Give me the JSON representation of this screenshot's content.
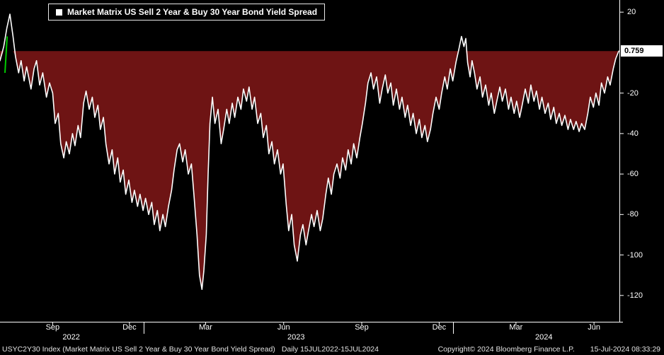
{
  "footer": {
    "instrument": "USYC2Y30 Index (Market Matrix US Sell 2 Year & Buy 30 Year Bond Yield Spread)",
    "range": "Daily 15JUL2022-15JUL2024",
    "copyright": "Copyright© 2024 Bloomberg Finance L.P.",
    "timestamp": "15-Jul-2024 08:33:29"
  },
  "chart_data": {
    "type": "area",
    "title": "Market Matrix US Sell 2 Year & Buy 30 Year Bond Yield Spread",
    "ylabel": "",
    "xlabel": "",
    "ylim": [
      -133,
      26
    ],
    "fill_level": 0.759,
    "current_value": 0.759,
    "current_label": "0.759",
    "y_ticks": [
      20,
      -20,
      -40,
      -60,
      -80,
      -100,
      -120
    ],
    "x_ticks": [
      {
        "label": "Sep",
        "f": 0.085
      },
      {
        "label": "Dec",
        "f": 0.209
      },
      {
        "label": "Mar",
        "f": 0.332
      },
      {
        "label": "Jun",
        "f": 0.458
      },
      {
        "label": "Sep",
        "f": 0.584
      },
      {
        "label": "Dec",
        "f": 0.709
      },
      {
        "label": "Mar",
        "f": 0.833
      },
      {
        "label": "Jun",
        "f": 0.959
      }
    ],
    "year_labels": [
      {
        "label": "2022",
        "f": 0.115
      },
      {
        "label": "2023",
        "f": 0.478
      },
      {
        "label": "2024",
        "f": 0.878
      }
    ],
    "year_separators": [
      0.2325,
      0.732
    ],
    "colors": {
      "line": "#ffffff",
      "fill": "#6e1414",
      "accent_green": "#00cc00",
      "axis": "#ffffff",
      "value_box_bg": "#ffffff",
      "value_box_text": "#000000",
      "background": "#000000"
    },
    "green_segment": [
      [
        0.008,
        -10
      ],
      [
        0.0115,
        8
      ]
    ],
    "points": [
      [
        0.0,
        -4
      ],
      [
        0.006,
        3
      ],
      [
        0.011,
        12
      ],
      [
        0.016,
        19
      ],
      [
        0.021,
        8
      ],
      [
        0.025,
        -2
      ],
      [
        0.03,
        -10
      ],
      [
        0.034,
        -4
      ],
      [
        0.039,
        -14
      ],
      [
        0.043,
        -7
      ],
      [
        0.05,
        -18
      ],
      [
        0.055,
        -8
      ],
      [
        0.059,
        -4
      ],
      [
        0.064,
        -16
      ],
      [
        0.069,
        -10
      ],
      [
        0.075,
        -22
      ],
      [
        0.08,
        -15
      ],
      [
        0.085,
        -20
      ],
      [
        0.089,
        -35
      ],
      [
        0.094,
        -30
      ],
      [
        0.098,
        -45
      ],
      [
        0.103,
        -52
      ],
      [
        0.107,
        -44
      ],
      [
        0.112,
        -50
      ],
      [
        0.117,
        -40
      ],
      [
        0.121,
        -46
      ],
      [
        0.126,
        -36
      ],
      [
        0.13,
        -42
      ],
      [
        0.135,
        -25
      ],
      [
        0.139,
        -19
      ],
      [
        0.144,
        -28
      ],
      [
        0.149,
        -22
      ],
      [
        0.153,
        -32
      ],
      [
        0.158,
        -26
      ],
      [
        0.162,
        -38
      ],
      [
        0.167,
        -32
      ],
      [
        0.171,
        -45
      ],
      [
        0.176,
        -55
      ],
      [
        0.181,
        -48
      ],
      [
        0.185,
        -60
      ],
      [
        0.19,
        -52
      ],
      [
        0.194,
        -64
      ],
      [
        0.199,
        -58
      ],
      [
        0.203,
        -70
      ],
      [
        0.208,
        -63
      ],
      [
        0.213,
        -74
      ],
      [
        0.217,
        -68
      ],
      [
        0.222,
        -76
      ],
      [
        0.226,
        -70
      ],
      [
        0.231,
        -78
      ],
      [
        0.235,
        -72
      ],
      [
        0.24,
        -80
      ],
      [
        0.245,
        -74
      ],
      [
        0.249,
        -85
      ],
      [
        0.254,
        -78
      ],
      [
        0.258,
        -88
      ],
      [
        0.263,
        -80
      ],
      [
        0.267,
        -86
      ],
      [
        0.272,
        -76
      ],
      [
        0.277,
        -68
      ],
      [
        0.281,
        -58
      ],
      [
        0.286,
        -48
      ],
      [
        0.29,
        -45
      ],
      [
        0.295,
        -54
      ],
      [
        0.299,
        -48
      ],
      [
        0.304,
        -60
      ],
      [
        0.309,
        -55
      ],
      [
        0.313,
        -70
      ],
      [
        0.318,
        -90
      ],
      [
        0.322,
        -110
      ],
      [
        0.326,
        -117
      ],
      [
        0.329,
        -108
      ],
      [
        0.333,
        -90
      ],
      [
        0.336,
        -60
      ],
      [
        0.339,
        -35
      ],
      [
        0.343,
        -22
      ],
      [
        0.347,
        -35
      ],
      [
        0.352,
        -28
      ],
      [
        0.357,
        -45
      ],
      [
        0.361,
        -38
      ],
      [
        0.366,
        -28
      ],
      [
        0.37,
        -35
      ],
      [
        0.375,
        -25
      ],
      [
        0.379,
        -32
      ],
      [
        0.384,
        -22
      ],
      [
        0.389,
        -28
      ],
      [
        0.393,
        -18
      ],
      [
        0.398,
        -24
      ],
      [
        0.402,
        -17
      ],
      [
        0.407,
        -28
      ],
      [
        0.411,
        -22
      ],
      [
        0.416,
        -35
      ],
      [
        0.421,
        -30
      ],
      [
        0.425,
        -42
      ],
      [
        0.43,
        -36
      ],
      [
        0.434,
        -50
      ],
      [
        0.439,
        -44
      ],
      [
        0.443,
        -55
      ],
      [
        0.448,
        -48
      ],
      [
        0.453,
        -60
      ],
      [
        0.457,
        -55
      ],
      [
        0.462,
        -75
      ],
      [
        0.466,
        -88
      ],
      [
        0.471,
        -80
      ],
      [
        0.475,
        -95
      ],
      [
        0.48,
        -103
      ],
      [
        0.485,
        -90
      ],
      [
        0.489,
        -85
      ],
      [
        0.494,
        -95
      ],
      [
        0.498,
        -88
      ],
      [
        0.503,
        -80
      ],
      [
        0.507,
        -86
      ],
      [
        0.512,
        -78
      ],
      [
        0.517,
        -88
      ],
      [
        0.521,
        -82
      ],
      [
        0.526,
        -70
      ],
      [
        0.53,
        -62
      ],
      [
        0.535,
        -70
      ],
      [
        0.539,
        -60
      ],
      [
        0.544,
        -55
      ],
      [
        0.549,
        -62
      ],
      [
        0.553,
        -52
      ],
      [
        0.558,
        -58
      ],
      [
        0.562,
        -48
      ],
      [
        0.567,
        -55
      ],
      [
        0.571,
        -45
      ],
      [
        0.576,
        -52
      ],
      [
        0.581,
        -42
      ],
      [
        0.585,
        -35
      ],
      [
        0.59,
        -25
      ],
      [
        0.594,
        -15
      ],
      [
        0.599,
        -10
      ],
      [
        0.603,
        -18
      ],
      [
        0.608,
        -12
      ],
      [
        0.613,
        -25
      ],
      [
        0.617,
        -18
      ],
      [
        0.622,
        -11
      ],
      [
        0.626,
        -20
      ],
      [
        0.631,
        -15
      ],
      [
        0.635,
        -26
      ],
      [
        0.64,
        -18
      ],
      [
        0.645,
        -28
      ],
      [
        0.649,
        -22
      ],
      [
        0.654,
        -32
      ],
      [
        0.658,
        -26
      ],
      [
        0.663,
        -36
      ],
      [
        0.667,
        -30
      ],
      [
        0.672,
        -40
      ],
      [
        0.677,
        -33
      ],
      [
        0.681,
        -42
      ],
      [
        0.686,
        -36
      ],
      [
        0.69,
        -44
      ],
      [
        0.695,
        -38
      ],
      [
        0.699,
        -30
      ],
      [
        0.704,
        -22
      ],
      [
        0.709,
        -28
      ],
      [
        0.713,
        -20
      ],
      [
        0.718,
        -12
      ],
      [
        0.722,
        -18
      ],
      [
        0.727,
        -8
      ],
      [
        0.731,
        -14
      ],
      [
        0.736,
        -5
      ],
      [
        0.741,
        2
      ],
      [
        0.745,
        8
      ],
      [
        0.749,
        3
      ],
      [
        0.752,
        7
      ],
      [
        0.755,
        -5
      ],
      [
        0.759,
        -12
      ],
      [
        0.762,
        -4
      ],
      [
        0.766,
        -10
      ],
      [
        0.77,
        -18
      ],
      [
        0.775,
        -12
      ],
      [
        0.779,
        -22
      ],
      [
        0.784,
        -16
      ],
      [
        0.789,
        -26
      ],
      [
        0.793,
        -20
      ],
      [
        0.798,
        -30
      ],
      [
        0.802,
        -24
      ],
      [
        0.807,
        -17
      ],
      [
        0.811,
        -24
      ],
      [
        0.816,
        -18
      ],
      [
        0.821,
        -28
      ],
      [
        0.825,
        -22
      ],
      [
        0.83,
        -30
      ],
      [
        0.834,
        -24
      ],
      [
        0.839,
        -32
      ],
      [
        0.843,
        -26
      ],
      [
        0.848,
        -18
      ],
      [
        0.853,
        -25
      ],
      [
        0.857,
        -16
      ],
      [
        0.862,
        -24
      ],
      [
        0.866,
        -19
      ],
      [
        0.871,
        -28
      ],
      [
        0.875,
        -22
      ],
      [
        0.88,
        -30
      ],
      [
        0.885,
        -25
      ],
      [
        0.889,
        -33
      ],
      [
        0.894,
        -27
      ],
      [
        0.898,
        -35
      ],
      [
        0.903,
        -30
      ],
      [
        0.907,
        -36
      ],
      [
        0.912,
        -31
      ],
      [
        0.917,
        -38
      ],
      [
        0.921,
        -33
      ],
      [
        0.926,
        -38
      ],
      [
        0.93,
        -34
      ],
      [
        0.935,
        -39
      ],
      [
        0.939,
        -35
      ],
      [
        0.944,
        -38
      ],
      [
        0.949,
        -30
      ],
      [
        0.953,
        -22
      ],
      [
        0.958,
        -27
      ],
      [
        0.962,
        -20
      ],
      [
        0.967,
        -26
      ],
      [
        0.971,
        -15
      ],
      [
        0.976,
        -20
      ],
      [
        0.981,
        -12
      ],
      [
        0.985,
        -16
      ],
      [
        0.99,
        -8
      ],
      [
        0.994,
        -3
      ],
      [
        0.999,
        0.759
      ]
    ]
  }
}
